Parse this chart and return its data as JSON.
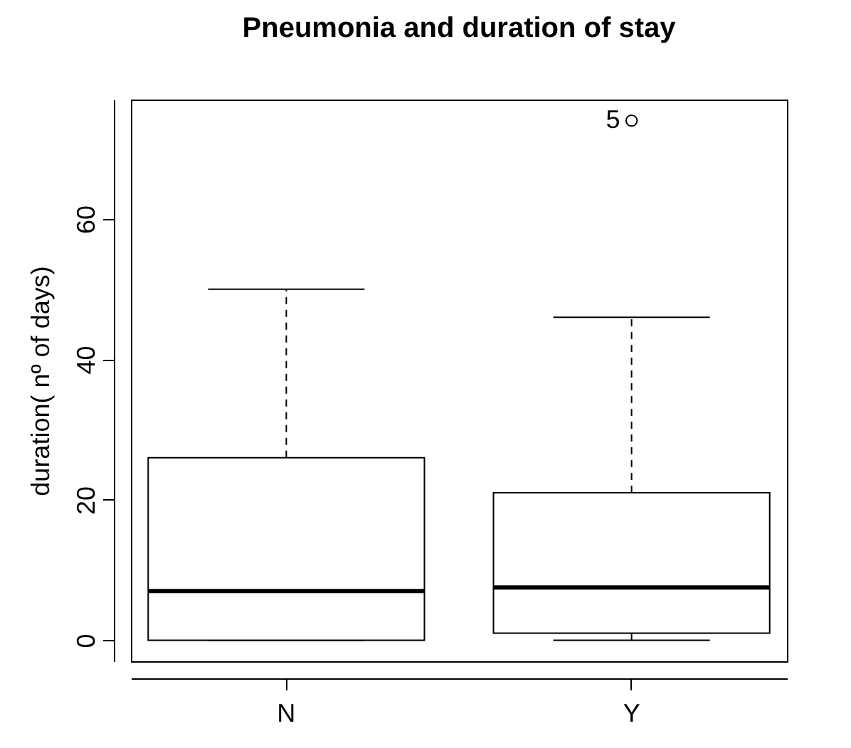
{
  "chart_data": {
    "type": "box",
    "title": "Pneumonia and duration of stay",
    "ylabel": "duration( nº of days)",
    "categories": [
      "N",
      "Y"
    ],
    "boxes": [
      {
        "low": 0,
        "q1": 0,
        "median": 7,
        "q3": 26,
        "high": 50
      },
      {
        "low": 0,
        "q1": 1,
        "median": 7.5,
        "q3": 21,
        "high": 46,
        "outliers": [
          74
        ]
      }
    ],
    "annotations": [
      "5"
    ],
    "ylim": [
      -3,
      77
    ],
    "yticks": [
      0,
      20,
      40,
      60
    ],
    "grid": false
  }
}
